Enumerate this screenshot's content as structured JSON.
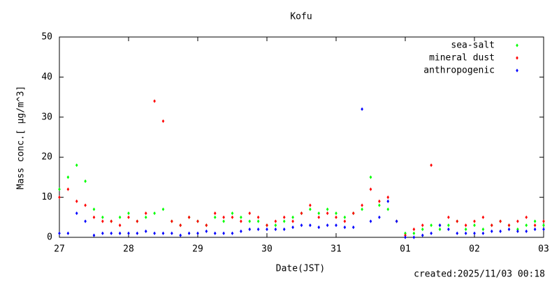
{
  "chart_data": {
    "type": "scatter",
    "title": "Kofu",
    "xlabel": "Date(JST)",
    "ylabel": "Mass conc.[ μg/m^3]",
    "annotation": "created:2025/11/03 00:18",
    "x": [
      0,
      3,
      6,
      9,
      12,
      15,
      18,
      21,
      24,
      27,
      30,
      33,
      36,
      39,
      42,
      45,
      48,
      51,
      54,
      57,
      60,
      63,
      66,
      69,
      72,
      75,
      78,
      81,
      84,
      87,
      90,
      93,
      96,
      99,
      102,
      105,
      108,
      111,
      114,
      117,
      120,
      123,
      126,
      129,
      132,
      135,
      138,
      141,
      144,
      147,
      150,
      153,
      156,
      159,
      162,
      165,
      168
    ],
    "series": [
      {
        "name": "sea-salt",
        "color": "#00ff00",
        "values": [
          12,
          15,
          18,
          14,
          7,
          5,
          4,
          5,
          6,
          4,
          5,
          6,
          7,
          4,
          3,
          5,
          4,
          3,
          5,
          4,
          6,
          5,
          4,
          4,
          3,
          3,
          4,
          5,
          6,
          7,
          6,
          7,
          6,
          5,
          6,
          7,
          15,
          8,
          7,
          4,
          1,
          1,
          2,
          3,
          2,
          3,
          4,
          2,
          3,
          2,
          3,
          4,
          3,
          2,
          3,
          4,
          3
        ]
      },
      {
        "name": "mineral dust",
        "color": "#ff0000",
        "values": [
          10,
          12,
          9,
          8,
          5,
          4,
          4,
          3,
          5,
          4,
          6,
          34,
          29,
          4,
          3,
          5,
          4,
          3,
          6,
          5,
          5,
          4,
          6,
          5,
          3,
          4,
          5,
          4,
          6,
          8,
          5,
          6,
          5,
          4,
          6,
          8,
          12,
          9,
          10,
          4,
          0.5,
          2,
          3,
          18,
          3,
          5,
          4,
          3,
          4,
          5,
          3,
          4,
          3,
          4,
          5,
          3,
          4
        ]
      },
      {
        "name": "anthropogenic",
        "color": "#0000ff",
        "values": [
          1,
          1,
          6,
          4,
          0.5,
          1,
          1,
          1,
          1,
          1,
          1.5,
          1,
          1,
          1,
          0.5,
          1,
          1,
          1.5,
          1,
          1,
          1,
          1.5,
          2,
          2,
          2,
          2,
          2,
          2.5,
          3,
          3,
          2.5,
          3,
          3,
          2.5,
          2.5,
          32,
          4,
          5,
          9,
          4,
          0,
          0,
          0.5,
          1,
          3,
          2,
          1,
          1,
          1,
          1,
          1.5,
          1.5,
          2,
          1.5,
          1.5,
          2,
          2
        ]
      }
    ],
    "xlim": [
      0,
      168
    ],
    "xticks": [
      {
        "value": 0,
        "label": "27"
      },
      {
        "value": 24,
        "label": "28"
      },
      {
        "value": 48,
        "label": "29"
      },
      {
        "value": 72,
        "label": "30"
      },
      {
        "value": 96,
        "label": "31"
      },
      {
        "value": 120,
        "label": "01"
      },
      {
        "value": 144,
        "label": "02"
      },
      {
        "value": 168,
        "label": "03"
      }
    ],
    "ylim": [
      0,
      50
    ],
    "yticks": [
      0,
      10,
      20,
      30,
      40,
      50
    ],
    "grid": false,
    "legend": "top-right"
  }
}
